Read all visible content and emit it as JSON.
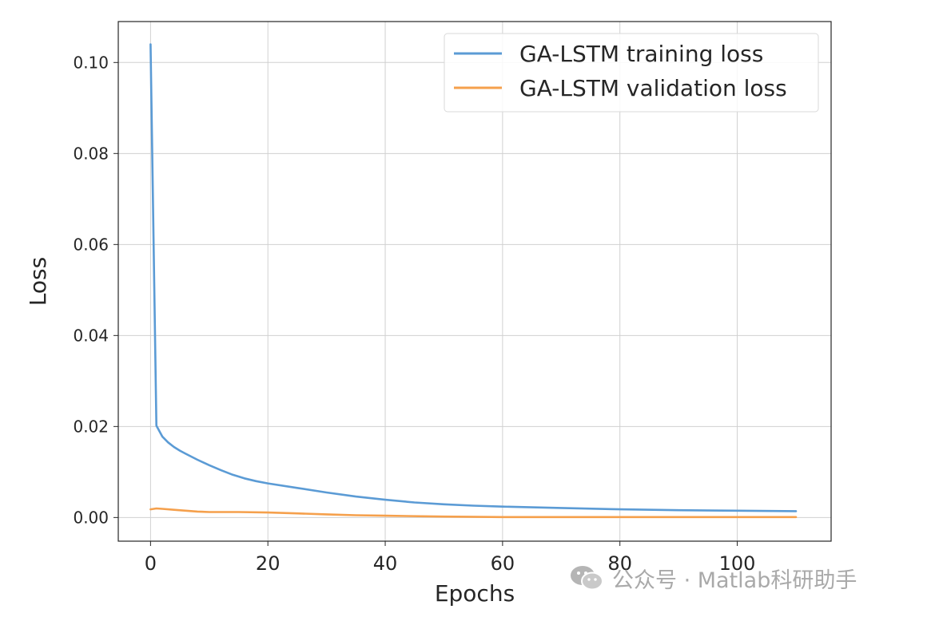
{
  "chart_data": {
    "type": "line",
    "title": "",
    "xlabel": "Epochs",
    "ylabel": "Loss",
    "xlim": [
      -5.5,
      116
    ],
    "ylim": [
      -0.0052,
      0.109
    ],
    "xticks": [
      0,
      20,
      40,
      60,
      80,
      100
    ],
    "yticks": [
      0.0,
      0.02,
      0.04,
      0.06,
      0.08,
      0.1
    ],
    "xtick_labels": [
      "0",
      "20",
      "40",
      "60",
      "80",
      "100"
    ],
    "ytick_labels": [
      "0.00",
      "0.02",
      "0.04",
      "0.06",
      "0.08",
      "0.10"
    ],
    "grid": true,
    "legend_position": "top-right",
    "series": [
      {
        "name": "GA-LSTM training loss",
        "color": "#5b9bd5",
        "x": [
          0,
          1,
          2,
          3,
          4,
          5,
          6,
          8,
          10,
          12,
          14,
          16,
          18,
          20,
          25,
          30,
          35,
          40,
          45,
          50,
          55,
          60,
          70,
          80,
          90,
          100,
          110
        ],
        "y": [
          0.104,
          0.0202,
          0.0178,
          0.0165,
          0.0155,
          0.0147,
          0.014,
          0.0127,
          0.0115,
          0.0104,
          0.0094,
          0.0086,
          0.008,
          0.0075,
          0.0065,
          0.0055,
          0.0046,
          0.0039,
          0.0033,
          0.0029,
          0.0026,
          0.0024,
          0.0021,
          0.0018,
          0.0016,
          0.0015,
          0.0014
        ]
      },
      {
        "name": "GA-LSTM validation loss",
        "color": "#f5a04c",
        "x": [
          0,
          1,
          2,
          4,
          6,
          8,
          10,
          15,
          20,
          25,
          30,
          35,
          40,
          50,
          60,
          70,
          80,
          90,
          100,
          110
        ],
        "y": [
          0.0018,
          0.002,
          0.0019,
          0.0017,
          0.0015,
          0.0013,
          0.0012,
          0.0012,
          0.0011,
          0.0009,
          0.0007,
          0.0005,
          0.0004,
          0.0002,
          0.0001,
          0.0001,
          0.0001,
          0.0001,
          0.0001,
          0.0001
        ]
      }
    ]
  },
  "watermark": {
    "text": "公众号 · Matlab科研助手",
    "icon": "wechat-icon"
  }
}
